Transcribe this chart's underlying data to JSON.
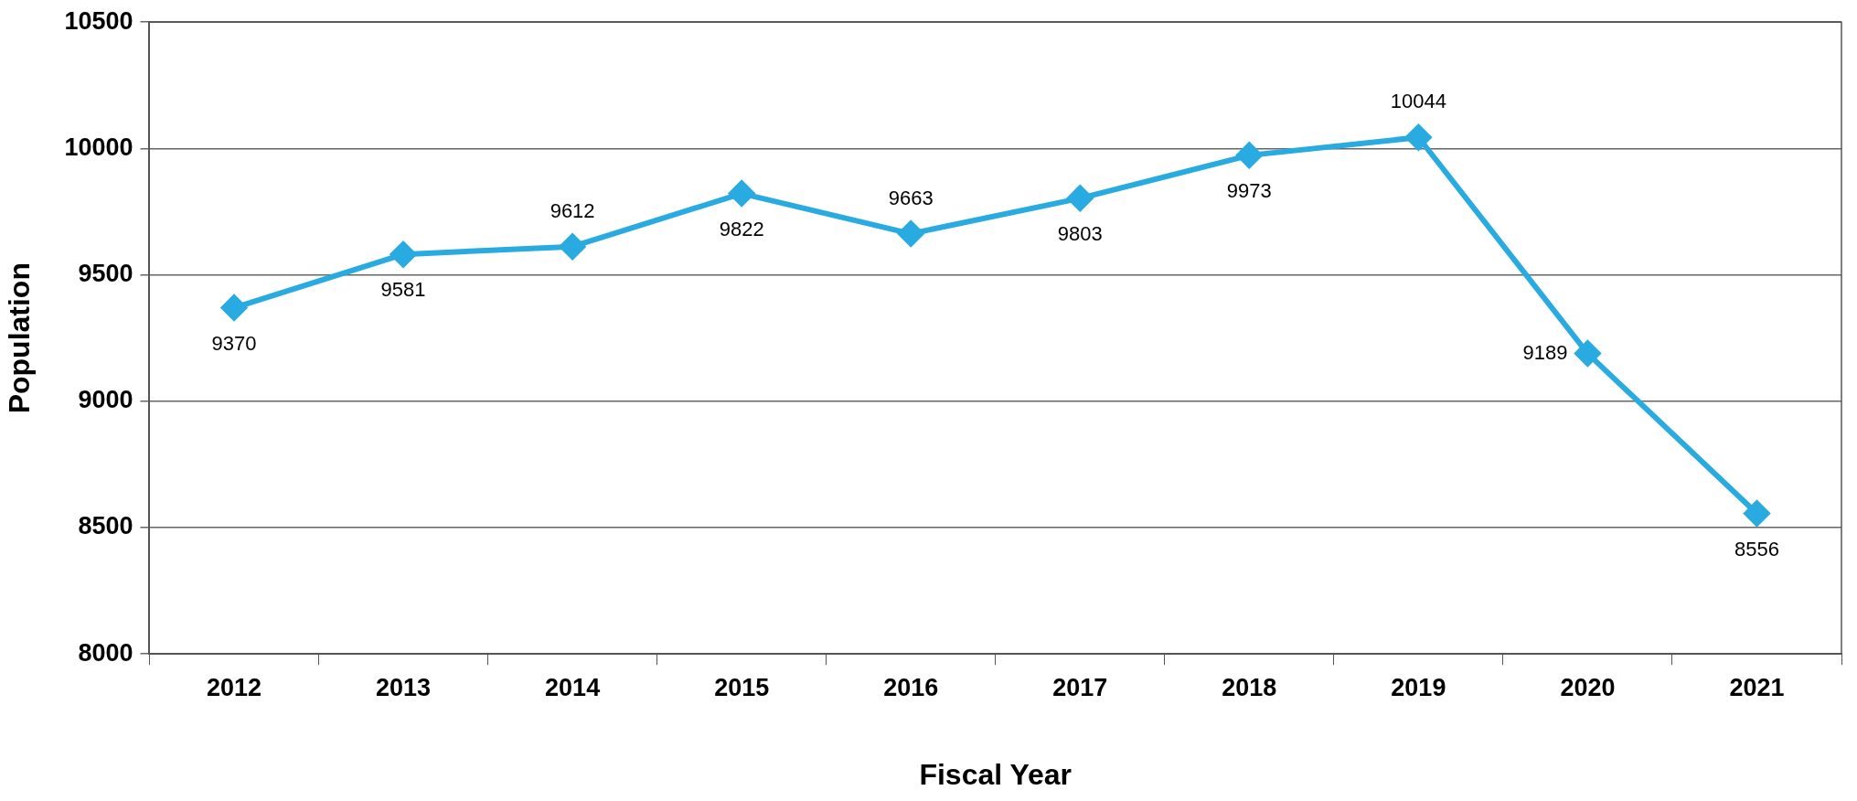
{
  "chart_data": {
    "type": "line",
    "xlabel": "Fiscal Year",
    "ylabel": "Population",
    "categories": [
      "2012",
      "2013",
      "2014",
      "2015",
      "2016",
      "2017",
      "2018",
      "2019",
      "2020",
      "2021"
    ],
    "series": [
      {
        "color": "#29abe2",
        "values": [
          9370,
          9581,
          9612,
          9822,
          9663,
          9803,
          9973,
          10044,
          9189,
          8556
        ]
      }
    ],
    "ylim": [
      8000,
      10500
    ],
    "yticks": [
      8000,
      8500,
      9000,
      9500,
      10000,
      10500
    ],
    "grid": "y",
    "legend": false,
    "marker": "diamond",
    "line_style": "solid",
    "data_labels": true
  }
}
